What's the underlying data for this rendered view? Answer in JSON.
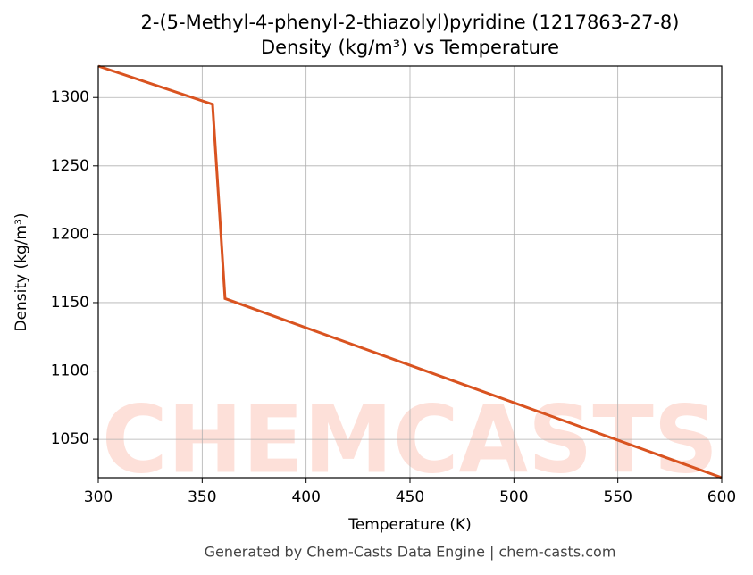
{
  "chart_data": {
    "type": "line",
    "title": "2-(5-Methyl-4-phenyl-2-thiazolyl)pyridine (1217863-27-8)",
    "subtitle": "Density (kg/m³) vs Temperature",
    "x_label": "Temperature (K)",
    "y_label": "Density (kg/m³)",
    "watermark": "CHEMCASTS",
    "footer": "Generated by Chem-Casts Data Engine | chem-casts.com",
    "series": [
      {
        "name": "Density",
        "color": "#d95320",
        "x": [
          300,
          355,
          361,
          600
        ],
        "values": [
          1323,
          1295,
          1153,
          1022
        ]
      }
    ],
    "xlim": [
      300,
      600
    ],
    "xticks": [
      300,
      350,
      400,
      450,
      500,
      550,
      600
    ],
    "ylim": [
      1022,
      1323
    ],
    "yticks": [
      1050,
      1100,
      1150,
      1200,
      1250,
      1300
    ],
    "grid": true
  }
}
